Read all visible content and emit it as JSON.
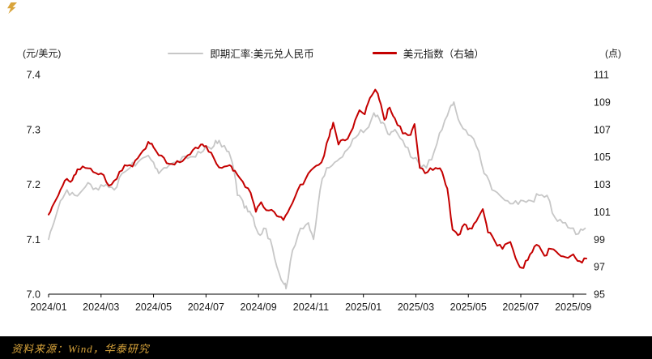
{
  "legend": {
    "items": [
      {
        "label": "即期汇率:美元兑人民币",
        "color": "#c7c7c7"
      },
      {
        "label": "美元指数（右轴）",
        "color": "#c40000"
      }
    ]
  },
  "footer": {
    "source": "资料来源：Wind，华泰研究",
    "bg": "#000000",
    "text_color": "#d9a43b"
  },
  "chart_data": {
    "type": "line",
    "x_axis": {
      "min": 0,
      "max": 20.5,
      "unit": "months since 2024/01",
      "ticks": [
        {
          "value": 0,
          "label": "2024/01"
        },
        {
          "value": 2,
          "label": "2024/03"
        },
        {
          "value": 4,
          "label": "2024/05"
        },
        {
          "value": 6,
          "label": "2024/07"
        },
        {
          "value": 8,
          "label": "2024/09"
        },
        {
          "value": 10,
          "label": "2024/11"
        },
        {
          "value": 12,
          "label": "2025/01"
        },
        {
          "value": 14,
          "label": "2025/03"
        },
        {
          "value": 16,
          "label": "2025/05"
        },
        {
          "value": 18,
          "label": "2025/07"
        },
        {
          "value": 20,
          "label": "2025/09"
        }
      ]
    },
    "left_axis": {
      "unit": "(元/美元)",
      "min": 7.0,
      "max": 7.4,
      "ticks": [
        {
          "value": 7.4,
          "label": "7.4"
        },
        {
          "value": 7.3,
          "label": "7.3"
        },
        {
          "value": 7.2,
          "label": "7.2"
        },
        {
          "value": 7.1,
          "label": "7.1"
        },
        {
          "value": 7.0,
          "label": "7.0"
        }
      ]
    },
    "right_axis": {
      "unit": "(点)",
      "min": 95,
      "max": 111,
      "ticks": [
        {
          "value": 111,
          "label": "111"
        },
        {
          "value": 109,
          "label": "109"
        },
        {
          "value": 107,
          "label": "107"
        },
        {
          "value": 105,
          "label": "105"
        },
        {
          "value": 103,
          "label": "103"
        },
        {
          "value": 101,
          "label": "101"
        },
        {
          "value": 99,
          "label": "99"
        },
        {
          "value": 97,
          "label": "97"
        },
        {
          "value": 95,
          "label": "95"
        }
      ]
    },
    "series": [
      {
        "name": "即期汇率:美元兑人民币",
        "axis": "left",
        "color": "#c7c7c7",
        "width": 1.8,
        "jitter": 0.007,
        "points": [
          [
            0,
            7.1
          ],
          [
            0.2,
            7.13
          ],
          [
            0.45,
            7.17
          ],
          [
            0.7,
            7.19
          ],
          [
            1,
            7.18
          ],
          [
            1.3,
            7.19
          ],
          [
            1.6,
            7.2
          ],
          [
            1.9,
            7.19
          ],
          [
            2.2,
            7.2
          ],
          [
            2.5,
            7.19
          ],
          [
            2.8,
            7.22
          ],
          [
            3.1,
            7.23
          ],
          [
            3.4,
            7.24
          ],
          [
            3.7,
            7.25
          ],
          [
            4,
            7.24
          ],
          [
            4.2,
            7.22
          ],
          [
            4.5,
            7.23
          ],
          [
            4.8,
            7.24
          ],
          [
            5.1,
            7.25
          ],
          [
            5.4,
            7.25
          ],
          [
            5.7,
            7.26
          ],
          [
            6,
            7.27
          ],
          [
            6.3,
            7.27
          ],
          [
            6.5,
            7.28
          ],
          [
            6.8,
            7.26
          ],
          [
            7,
            7.24
          ],
          [
            7.2,
            7.18
          ],
          [
            7.4,
            7.17
          ],
          [
            7.6,
            7.15
          ],
          [
            7.8,
            7.14
          ],
          [
            8,
            7.11
          ],
          [
            8.2,
            7.12
          ],
          [
            8.45,
            7.1
          ],
          [
            8.7,
            7.05
          ],
          [
            8.95,
            7.02
          ],
          [
            9.05,
            7.01
          ],
          [
            9.3,
            7.08
          ],
          [
            9.6,
            7.12
          ],
          [
            9.9,
            7.13
          ],
          [
            10.1,
            7.1
          ],
          [
            10.35,
            7.19
          ],
          [
            10.6,
            7.23
          ],
          [
            10.9,
            7.24
          ],
          [
            11.2,
            7.25
          ],
          [
            11.5,
            7.27
          ],
          [
            11.8,
            7.29
          ],
          [
            12.1,
            7.3
          ],
          [
            12.4,
            7.33
          ],
          [
            12.6,
            7.32
          ],
          [
            12.8,
            7.31
          ],
          [
            13,
            7.29
          ],
          [
            13.2,
            7.3
          ],
          [
            13.5,
            7.28
          ],
          [
            13.8,
            7.25
          ],
          [
            14.1,
            7.24
          ],
          [
            14.4,
            7.23
          ],
          [
            14.7,
            7.26
          ],
          [
            15,
            7.3
          ],
          [
            15.3,
            7.34
          ],
          [
            15.45,
            7.35
          ],
          [
            15.7,
            7.31
          ],
          [
            16,
            7.29
          ],
          [
            16.3,
            7.27
          ],
          [
            16.6,
            7.22
          ],
          [
            16.9,
            7.19
          ],
          [
            17.2,
            7.18
          ],
          [
            17.5,
            7.17
          ],
          [
            17.8,
            7.17
          ],
          [
            18.1,
            7.17
          ],
          [
            18.4,
            7.17
          ],
          [
            18.7,
            7.18
          ],
          [
            19,
            7.18
          ],
          [
            19.3,
            7.14
          ],
          [
            19.6,
            7.13
          ],
          [
            19.9,
            7.12
          ],
          [
            20.2,
            7.11
          ],
          [
            20.45,
            7.12
          ]
        ]
      },
      {
        "name": "美元指数（右轴）",
        "axis": "right",
        "color": "#c40000",
        "width": 2,
        "jitter": 0.2,
        "points": [
          [
            0,
            100.8
          ],
          [
            0.2,
            101.6
          ],
          [
            0.45,
            102.6
          ],
          [
            0.7,
            103.4
          ],
          [
            0.9,
            103.3
          ],
          [
            1.1,
            104.1
          ],
          [
            1.4,
            104.2
          ],
          [
            1.7,
            103.9
          ],
          [
            2,
            103.8
          ],
          [
            2.3,
            102.9
          ],
          [
            2.6,
            103.4
          ],
          [
            2.9,
            104.4
          ],
          [
            3.2,
            104.3
          ],
          [
            3.5,
            105.2
          ],
          [
            3.8,
            106.1
          ],
          [
            4,
            105.7
          ],
          [
            4.3,
            105.1
          ],
          [
            4.6,
            104.5
          ],
          [
            4.9,
            104.7
          ],
          [
            5.2,
            104.9
          ],
          [
            5.5,
            105.5
          ],
          [
            5.8,
            105.9
          ],
          [
            6,
            105.8
          ],
          [
            6.3,
            104.9
          ],
          [
            6.6,
            104.2
          ],
          [
            6.9,
            104.4
          ],
          [
            7.1,
            104.0
          ],
          [
            7.4,
            103.2
          ],
          [
            7.7,
            102.4
          ],
          [
            7.9,
            101.0
          ],
          [
            8.1,
            101.7
          ],
          [
            8.4,
            101.1
          ],
          [
            8.7,
            100.7
          ],
          [
            8.95,
            100.4
          ],
          [
            9.2,
            101.3
          ],
          [
            9.5,
            102.6
          ],
          [
            9.8,
            103.4
          ],
          [
            10.1,
            104.2
          ],
          [
            10.4,
            104.6
          ],
          [
            10.7,
            106.5
          ],
          [
            10.85,
            107.5
          ],
          [
            11.05,
            105.9
          ],
          [
            11.3,
            106.2
          ],
          [
            11.6,
            107.1
          ],
          [
            11.85,
            108.4
          ],
          [
            12.05,
            108.1
          ],
          [
            12.25,
            109.3
          ],
          [
            12.45,
            109.9
          ],
          [
            12.6,
            109.2
          ],
          [
            12.8,
            107.7
          ],
          [
            13,
            108.6
          ],
          [
            13.2,
            107.8
          ],
          [
            13.5,
            106.7
          ],
          [
            13.8,
            106.6
          ],
          [
            13.95,
            107.4
          ],
          [
            14.15,
            104.2
          ],
          [
            14.45,
            103.9
          ],
          [
            14.75,
            104.2
          ],
          [
            15,
            103.9
          ],
          [
            15.2,
            102.7
          ],
          [
            15.4,
            99.7
          ],
          [
            15.6,
            99.3
          ],
          [
            15.85,
            100.1
          ],
          [
            16.05,
            99.8
          ],
          [
            16.3,
            100.3
          ],
          [
            16.55,
            101.2
          ],
          [
            16.75,
            99.5
          ],
          [
            17,
            98.9
          ],
          [
            17.3,
            98.3
          ],
          [
            17.6,
            98.8
          ],
          [
            17.9,
            97.2
          ],
          [
            18.1,
            96.9
          ],
          [
            18.35,
            97.9
          ],
          [
            18.6,
            98.6
          ],
          [
            18.9,
            97.8
          ],
          [
            19.15,
            98.3
          ],
          [
            19.45,
            97.9
          ],
          [
            19.7,
            97.7
          ],
          [
            20,
            97.9
          ],
          [
            20.25,
            97.4
          ],
          [
            20.5,
            97.6
          ]
        ]
      }
    ]
  }
}
